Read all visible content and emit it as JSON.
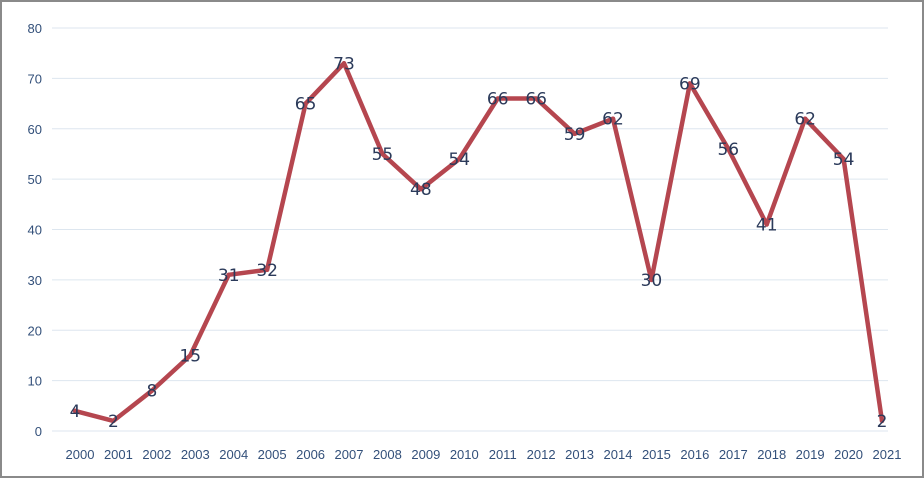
{
  "chart_data": {
    "type": "line",
    "title": "",
    "xlabel": "",
    "ylabel": "",
    "x": [
      "2000",
      "2001",
      "2002",
      "2003",
      "2004",
      "2005",
      "2006",
      "2007",
      "2008",
      "2009",
      "2010",
      "2011",
      "2012",
      "2013",
      "2014",
      "2015",
      "2016",
      "2017",
      "2018",
      "2019",
      "2020",
      "2021"
    ],
    "series": [
      {
        "values": [
          4,
          2,
          8,
          15,
          31,
          32,
          65,
          73,
          55,
          48,
          54,
          66,
          66,
          59,
          62,
          30,
          69,
          56,
          41,
          62,
          54,
          2
        ],
        "color": "#b5464f"
      }
    ],
    "ylim": [
      0,
      80
    ],
    "yticks": [
      "0",
      "10",
      "20",
      "30",
      "40",
      "50",
      "60",
      "70",
      "80"
    ],
    "grid": "horizontal",
    "legend": "none",
    "data_labels": true
  }
}
